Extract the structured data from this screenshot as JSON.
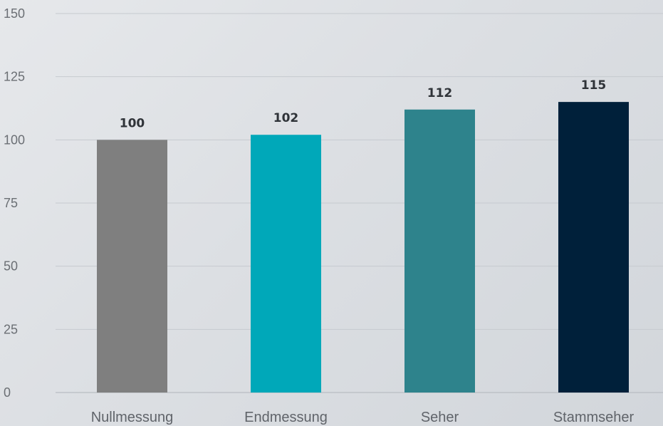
{
  "chart_data": {
    "type": "bar",
    "categories": [
      "Nullmessung",
      "Endmessung",
      "Seher",
      "Stammseher"
    ],
    "values": [
      100,
      102,
      112,
      115
    ],
    "data_labels": [
      "100",
      "102",
      "112",
      "115"
    ],
    "colors": [
      "#7f7f7f",
      "#00a8b9",
      "#2e838c",
      "#00203a"
    ],
    "yticks": [
      0,
      25,
      50,
      75,
      100,
      125,
      150
    ],
    "ylim": [
      0,
      150
    ],
    "title": "",
    "xlabel": "",
    "ylabel": "",
    "grid": true,
    "legend": "none"
  }
}
